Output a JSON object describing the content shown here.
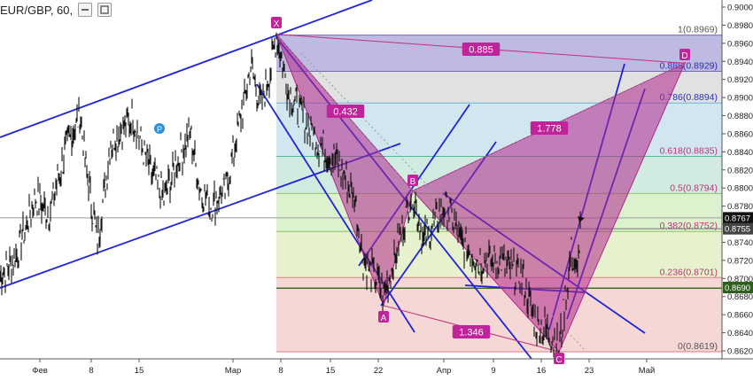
{
  "header": {
    "symbol_text": "EUR/GBP, 60, ",
    "buttons": [
      "minimize-icon",
      "settings-icon"
    ]
  },
  "colors": {
    "price": "#111111",
    "channel": "#1f24d8",
    "pattern_fill": "#b0268d",
    "pattern_label_bg": "#c0249a",
    "ratio_line": "#c2307a",
    "fib_0": "#f3c6c9",
    "fib_0236": "#f4d4d2",
    "fib_0382": "#e6f0c8",
    "fib_05": "#d8efc9",
    "fib_0618": "#cde9dd",
    "fib_0786": "#cde3ee",
    "fib_0886": "#dedede",
    "fib_1": "#b7b3de",
    "fib_text": "#c2307a",
    "fib_text_blue": "#2830b5",
    "current_price_bg": "#111111",
    "target_price_bg": "#2f5f1d",
    "level_bg": "#444444"
  },
  "chart_data": {
    "type": "line",
    "title": "EUR/GBP, 60",
    "ylim": [
      0.8615,
      0.9005
    ],
    "y_ticks": [
      "0.9000",
      "0.8980",
      "0.8960",
      "0.8940",
      "0.8920",
      "0.8900",
      "0.8880",
      "0.8860",
      "0.8840",
      "0.8820",
      "0.8800",
      "0.8780",
      "0.8760",
      "0.8740",
      "0.8720",
      "0.8700",
      "0.8680",
      "0.8660",
      "0.8640",
      "0.8620"
    ],
    "x_ticks": [
      "Фев",
      "8",
      "15",
      "Мар",
      "8",
      "15",
      "22",
      "Апр",
      "9",
      "16",
      "23",
      "Май"
    ],
    "price_badges": [
      {
        "value": "0.8767",
        "price": 0.8767,
        "style": "current"
      },
      {
        "value": "0.8755",
        "price": 0.8755,
        "style": "level"
      },
      {
        "value": "0.8690",
        "price": 0.869,
        "style": "target"
      }
    ],
    "fib_levels": [
      {
        "label": "1(0.8969)",
        "price": 0.8969
      },
      {
        "label": "0.886(0.8929)",
        "price": 0.8929
      },
      {
        "label": "0.786(0.8894)",
        "price": 0.8894
      },
      {
        "label": "0.618(0.8835)",
        "price": 0.8835
      },
      {
        "label": "0.5(0.8794)",
        "price": 0.8794
      },
      {
        "label": "0.382(0.8752)",
        "price": 0.8752
      },
      {
        "label": "0.236(0.8701)",
        "price": 0.8701
      },
      {
        "label": "0(0.8619)",
        "price": 0.8619
      }
    ],
    "pattern_points": [
      {
        "label": "X",
        "price": 0.897
      },
      {
        "label": "A",
        "price": 0.867
      },
      {
        "label": "B",
        "price": 0.8797
      },
      {
        "label": "C",
        "price": 0.8619
      },
      {
        "label": "D",
        "price": 0.8938
      }
    ],
    "ratios": [
      "0.432",
      "1.778",
      "1.346",
      "0.885"
    ],
    "marker": "P"
  }
}
